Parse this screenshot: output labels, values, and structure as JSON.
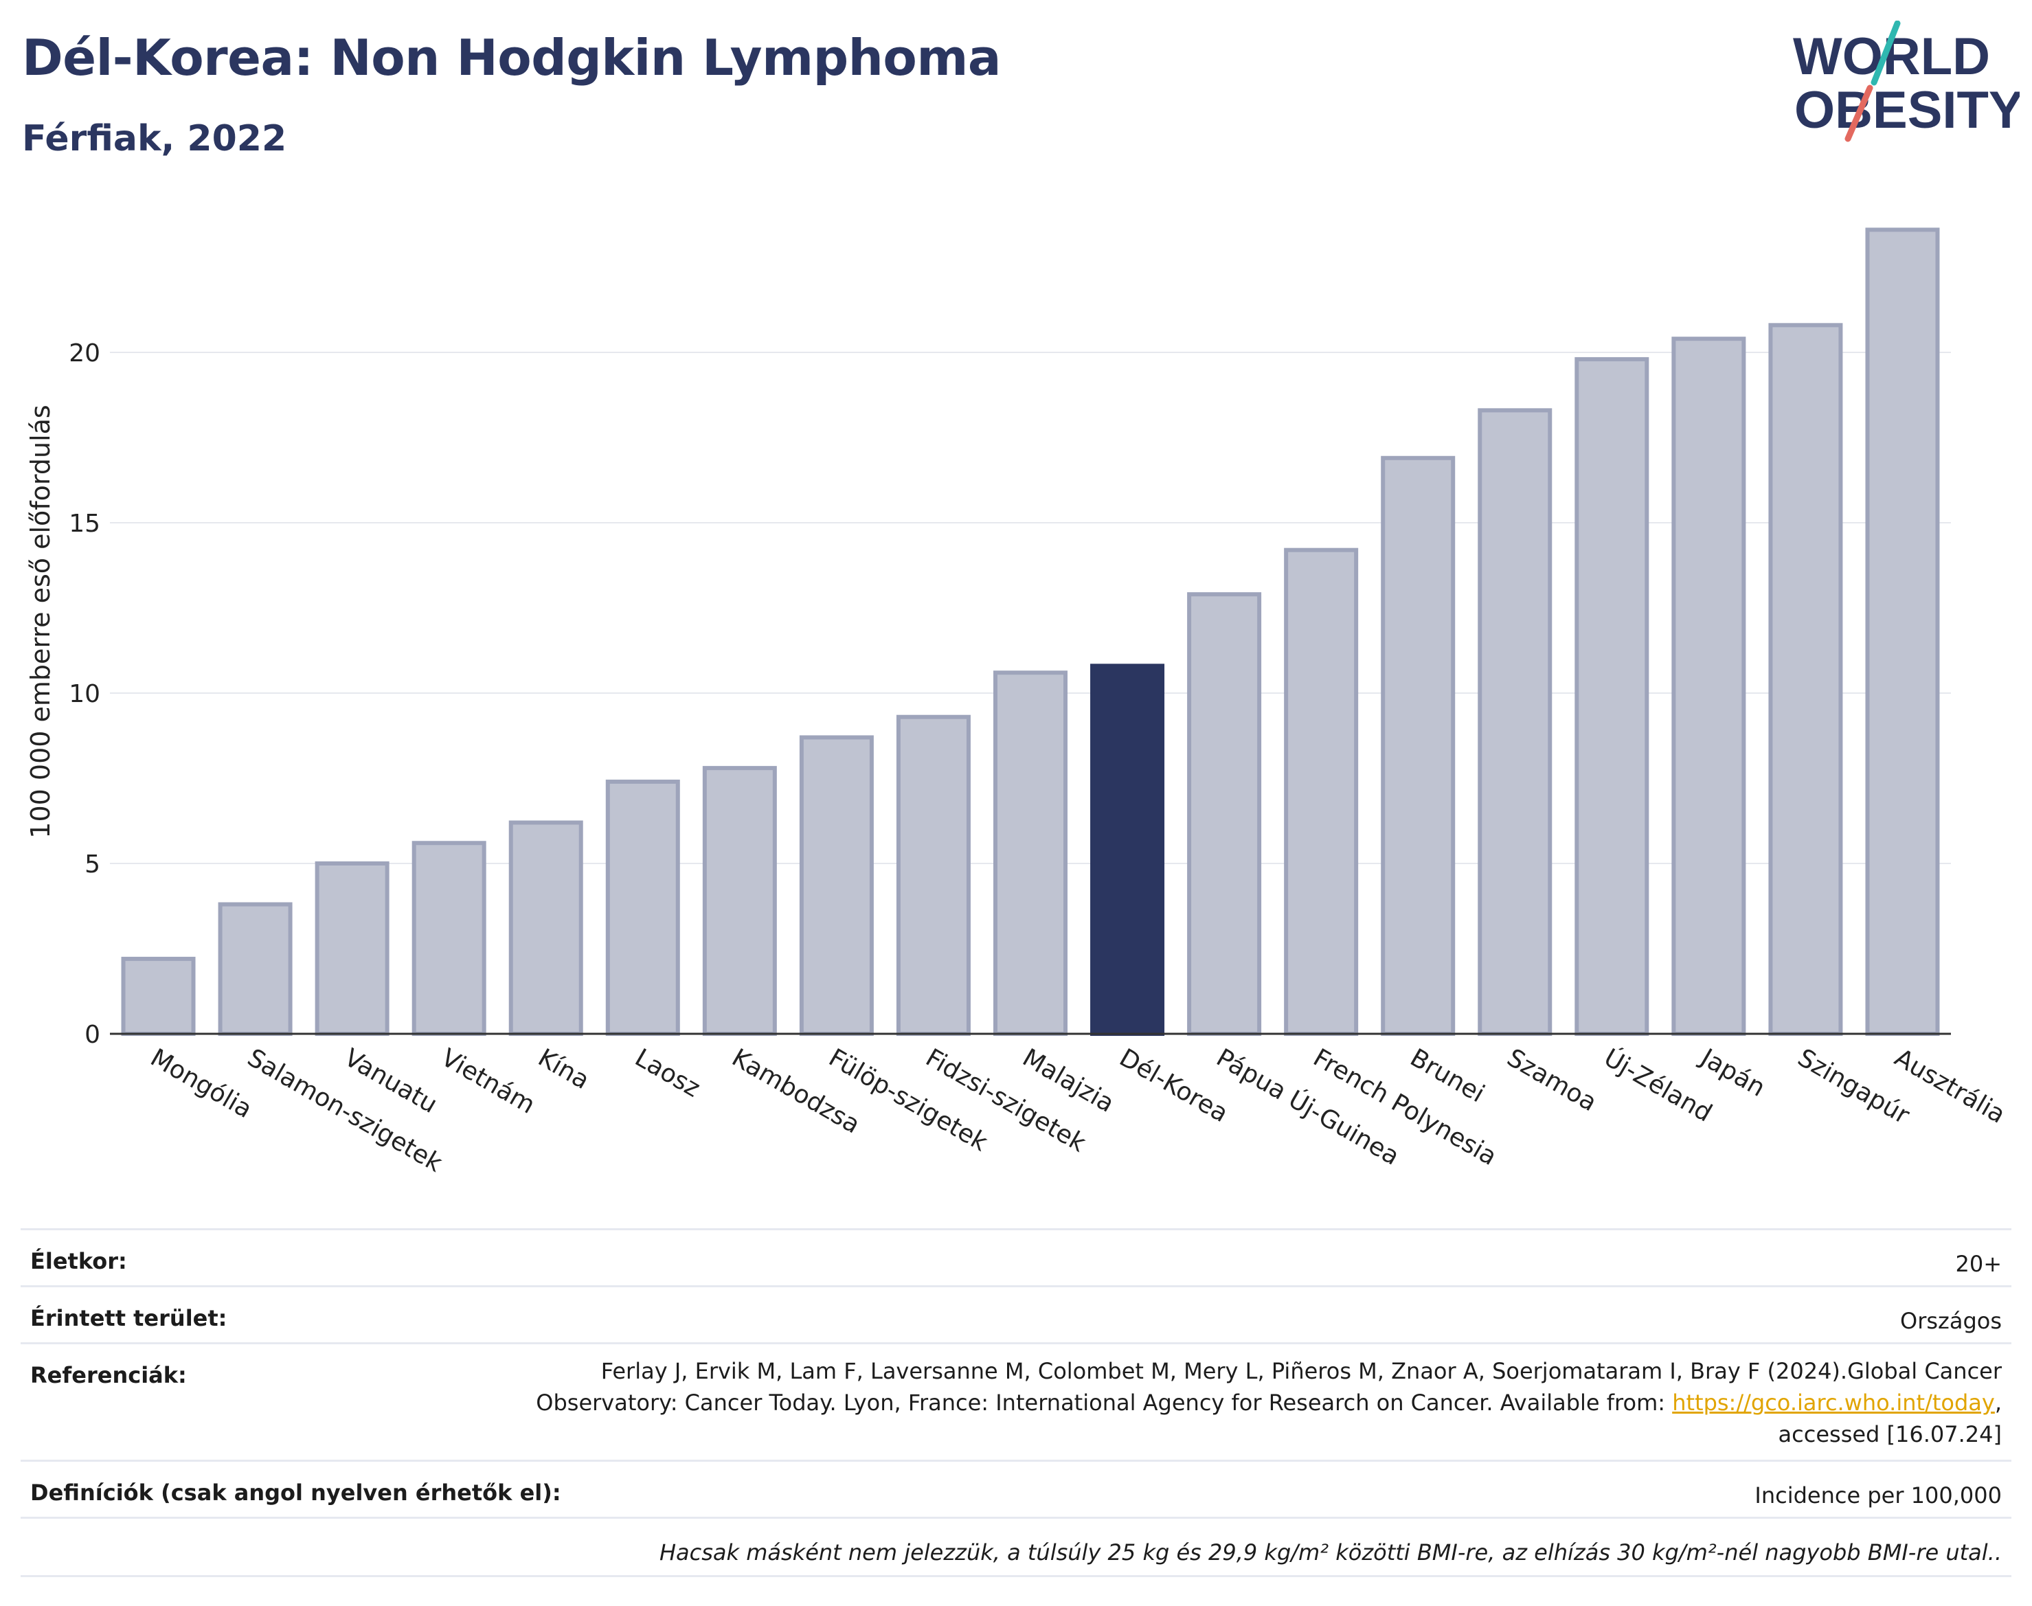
{
  "header": {
    "title": "Dél-Korea: Non Hodgkin Lymphoma",
    "subtitle": "Férfiak, 2022"
  },
  "logo": {
    "line1": "WORLD",
    "line2": "OBESITY"
  },
  "colors": {
    "title": "#2b3660",
    "bar_default": "#bfc3d1",
    "bar_default_stroke": "#9ea4bb",
    "bar_highlight": "#2b3660",
    "logo_accent_teal": "#2fb7b0",
    "logo_accent_red": "#e3695f",
    "link": "#e1a400"
  },
  "chart_data": {
    "type": "bar",
    "ylabel": "100 000 emberre eső előfordulás",
    "xlabel": "",
    "ylim": [
      0,
      24
    ],
    "yticks": [
      0,
      5,
      10,
      15,
      20
    ],
    "grid": true,
    "highlight": "Dél-Korea",
    "categories": [
      "Mongólia",
      "Salamon-szigetek",
      "Vanuatu",
      "Vietnám",
      "Kína",
      "Laosz",
      "Kambodzsa",
      "Fülöp-szigetek",
      "Fidzsi-szigetek",
      "Malajzia",
      "Dél-Korea",
      "Pápua Új-Guinea",
      "French Polynesia",
      "Brunei",
      "Szamoa",
      "Új-Zéland",
      "Japán",
      "Szingapúr",
      "Ausztrália"
    ],
    "values": [
      2.2,
      3.8,
      5.0,
      5.6,
      6.2,
      7.4,
      7.8,
      8.7,
      9.3,
      10.6,
      10.8,
      12.9,
      14.2,
      16.9,
      18.3,
      19.8,
      20.4,
      20.8,
      23.6
    ]
  },
  "info": {
    "rows": [
      {
        "label": "Életkor:",
        "value": "20+"
      },
      {
        "label": "Érintett terület:",
        "value": "Országos"
      }
    ],
    "references": {
      "label": "Referenciák:",
      "line1": "Ferlay J, Ervik M, Lam F, Laversanne M, Colombet M, Mery L, Piñeros M, Znaor A, Soerjomataram I, Bray F (2024).Global Cancer",
      "line2_before": "Observatory: Cancer Today. Lyon, France: International Agency for Research on Cancer. Available from: ",
      "link": "https://gco.iarc.who.int/today",
      "line2_after": ",",
      "line3": "accessed [16.07.24]"
    },
    "definitions": {
      "label": "Definíciók (csak angol nyelven érhetők el):",
      "value": "Incidence per 100,000"
    },
    "note": "Hacsak másként nem jelezzük, a túlsúly 25 kg és 29,9 kg/m² közötti BMI-re, az elhízás 30 kg/m²-nél nagyobb BMI-re utal.."
  }
}
